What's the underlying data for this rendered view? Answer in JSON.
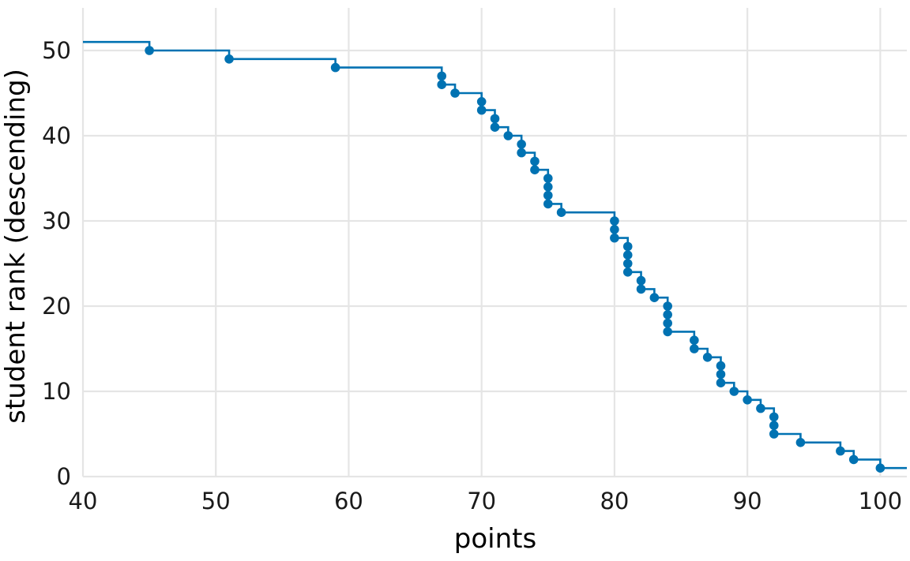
{
  "chart_data": {
    "type": "line",
    "subtype": "step with points (reversed cumulative ranking)",
    "title": "",
    "xlabel": "points",
    "ylabel": "student rank (descending)",
    "xlim": [
      40,
      102
    ],
    "ylim": [
      0,
      55
    ],
    "x_ticks": [
      40,
      50,
      60,
      70,
      80,
      90,
      100
    ],
    "y_ticks": [
      0,
      10,
      20,
      30,
      40,
      50
    ],
    "grid": true,
    "legend": "none",
    "color": "#0072B2",
    "series": [
      {
        "values_note": "",
        "points": [
          {
            "x": 45,
            "y": 50
          },
          {
            "x": 51,
            "y": 49
          },
          {
            "x": 59,
            "y": 48
          },
          {
            "x": 67,
            "y": 47
          },
          {
            "x": 67,
            "y": 46
          },
          {
            "x": 68,
            "y": 45
          },
          {
            "x": 70,
            "y": 44
          },
          {
            "x": 70,
            "y": 43
          },
          {
            "x": 71,
            "y": 42
          },
          {
            "x": 71,
            "y": 41
          },
          {
            "x": 72,
            "y": 40
          },
          {
            "x": 73,
            "y": 39
          },
          {
            "x": 73,
            "y": 38
          },
          {
            "x": 74,
            "y": 37
          },
          {
            "x": 74,
            "y": 36
          },
          {
            "x": 75,
            "y": 35
          },
          {
            "x": 75,
            "y": 34
          },
          {
            "x": 75,
            "y": 33
          },
          {
            "x": 75,
            "y": 32
          },
          {
            "x": 76,
            "y": 31
          },
          {
            "x": 80,
            "y": 30
          },
          {
            "x": 80,
            "y": 29
          },
          {
            "x": 80,
            "y": 28
          },
          {
            "x": 81,
            "y": 27
          },
          {
            "x": 81,
            "y": 26
          },
          {
            "x": 81,
            "y": 25
          },
          {
            "x": 81,
            "y": 24
          },
          {
            "x": 82,
            "y": 23
          },
          {
            "x": 82,
            "y": 22
          },
          {
            "x": 83,
            "y": 21
          },
          {
            "x": 84,
            "y": 20
          },
          {
            "x": 84,
            "y": 19
          },
          {
            "x": 84,
            "y": 18
          },
          {
            "x": 84,
            "y": 17
          },
          {
            "x": 86,
            "y": 16
          },
          {
            "x": 86,
            "y": 15
          },
          {
            "x": 87,
            "y": 14
          },
          {
            "x": 88,
            "y": 13
          },
          {
            "x": 88,
            "y": 12
          },
          {
            "x": 88,
            "y": 11
          },
          {
            "x": 89,
            "y": 10
          },
          {
            "x": 90,
            "y": 9
          },
          {
            "x": 91,
            "y": 8
          },
          {
            "x": 92,
            "y": 7
          },
          {
            "x": 92,
            "y": 6
          },
          {
            "x": 92,
            "y": 5
          },
          {
            "x": 94,
            "y": 4
          },
          {
            "x": 97,
            "y": 3
          },
          {
            "x": 98,
            "y": 2
          },
          {
            "x": 100,
            "y": 1
          }
        ]
      }
    ]
  }
}
